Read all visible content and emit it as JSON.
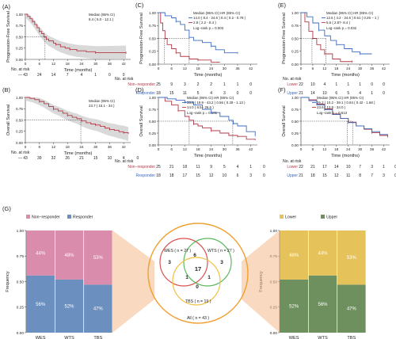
{
  "colors": {
    "red": "#b23a48",
    "blue": "#3d6bc2",
    "ci": "#cccccc",
    "pink": "#d98cab",
    "steel": "#6b8fbf",
    "gold": "#e6c25a",
    "green": "#6e8f5e",
    "ring_orange": "#f0a030",
    "ring_red": "#d9534f",
    "ring_green": "#5cb85c",
    "ring_yellow": "#f0c040"
  },
  "panels": {
    "A": {
      "letter": "(A)",
      "ylabel": "Progression-Free Survival",
      "xlabel": "Time (months)",
      "legend": "Median (95% CI)",
      "legend_rows": [
        "8.4 ( 5.0 - 12.1 )"
      ],
      "risk_title": "No. at risk",
      "risk_rows": [
        {
          "label": "—",
          "values": [
            "43",
            "24",
            "14",
            "7",
            "4",
            "1",
            "0",
            "0"
          ]
        }
      ]
    },
    "B": {
      "letter": "(B)",
      "ylabel": "Overall Survival",
      "xlabel": "Time (months)",
      "legend": "Median (95% CI)",
      "legend_rows": [
        "23.7 ( 15.1 - 34 )"
      ],
      "risk_title": "No. at risk",
      "risk_rows": [
        {
          "label": "—",
          "values": [
            "43",
            "39",
            "32",
            "26",
            "21",
            "15",
            "10",
            "4",
            "0"
          ]
        }
      ]
    },
    "C": {
      "letter": "(C)",
      "ylabel": "Progression-Free Survival",
      "xlabel": "Time (months)",
      "legend": "Median (95% CI)   HR (95% CI)",
      "legend_rows": [
        "14.0 ( 8.4 - 24.6 )  0.4 ( 0.2 - 0.78 )",
        "2.8 ( 2.2 - 8.4 )"
      ],
      "logrank": "Log−rank p = 0.003",
      "risk_title": "No. at risk",
      "risk_rows": [
        {
          "label": "Non−responder",
          "values": [
            "25",
            "9",
            "3",
            "2",
            "2",
            "1",
            "1",
            "0"
          ]
        },
        {
          "label": "Responder",
          "values": [
            "18",
            "15",
            "11",
            "5",
            "4",
            "3",
            "0",
            "0"
          ]
        }
      ]
    },
    "D": {
      "letter": "(D)",
      "ylabel": "Overall Survival",
      "xlabel": "Time (months)",
      "legend": "Median (95% CI)   HR (95% CI)",
      "legend_rows": [
        "33.8 ( 19.9 - 43.2 )  0.56 ( 0.28 - 1.13 )",
        "14.0 ( 8.5 - 26.6 )"
      ],
      "logrank": "Log−rank p = 0.101",
      "risk_title": "No. at risk",
      "risk_rows": [
        {
          "label": "Non−responder",
          "values": [
            "25",
            "21",
            "18",
            "11",
            "9",
            "5",
            "4",
            "1",
            "0"
          ]
        },
        {
          "label": "Responder",
          "values": [
            "18",
            "18",
            "17",
            "15",
            "12",
            "10",
            "6",
            "3",
            "0"
          ]
        }
      ]
    },
    "E": {
      "letter": "(E)",
      "ylabel": "Progression-Free Survival",
      "xlabel": "Time (months)",
      "legend": "Median (95% CI)   HR (95% CI)",
      "legend_rows": [
        "12.6 ( 4.2 - 24.6 )  0.51 ( 0.26 − 1 )",
        "5.6 ( 2.87- 8.4 )"
      ],
      "logrank": "Log−rank p = 0.032",
      "risk_title": "No. at risk",
      "risk_rows": [
        {
          "label": "Lower",
          "values": [
            "22",
            "10",
            "4",
            "1",
            "1",
            "1",
            "0",
            "0"
          ]
        },
        {
          "label": "Upper",
          "values": [
            "21",
            "14",
            "10",
            "6",
            "5",
            "4",
            "1",
            "0"
          ]
        }
      ]
    },
    "F": {
      "letter": "(F)",
      "ylabel": "Overall Survival",
      "xlabel": "Time (months)",
      "legend": "Median (95% CI)   HR (95% CI)",
      "legend_rows": [
        "26.2 ( 10.2 - 39.1 )  0.84 ( 0.42 - 1.68 )",
        "23.6 ( 13.9 - 34.0 )"
      ],
      "logrank": "Log−rank p = 0.613",
      "risk_title": "No. at risk",
      "risk_rows": [
        {
          "label": "Lower",
          "values": [
            "22",
            "21",
            "17",
            "14",
            "10",
            "7",
            "3",
            "1",
            "0"
          ]
        },
        {
          "label": "Upper",
          "values": [
            "21",
            "18",
            "15",
            "12",
            "11",
            "8",
            "7",
            "3",
            "0"
          ]
        }
      ]
    }
  },
  "g": {
    "letter": "(G)",
    "left_legend": [
      "Non−responder",
      "Responder"
    ],
    "right_legend": [
      "Lower",
      "Upper"
    ],
    "venn": {
      "wes": "WES ( n = 27 )",
      "wts": "WTS ( n = 27 )",
      "tbs": "TBS ( n = 19 )",
      "all": "All ( n = 43 )",
      "counts": [
        "3",
        "6",
        "3",
        "1",
        "17",
        "1",
        "0"
      ]
    }
  },
  "chart_data": [
    {
      "type": "line",
      "title": "",
      "xlabel": "Time (months)",
      "ylabel": "Progression-Free Survival",
      "xlim": [
        0,
        45
      ],
      "ylim": [
        0,
        1
      ],
      "x_ticks": [
        0,
        6,
        12,
        18,
        24,
        30,
        36,
        42
      ],
      "y_ticks": [
        0,
        0.25,
        0.5,
        0.75,
        1
      ],
      "series": [
        {
          "x": [
            0,
            1,
            2,
            3,
            4,
            5,
            6,
            7,
            8,
            9,
            10,
            12,
            13,
            15,
            17,
            19,
            22,
            26,
            30,
            36,
            40,
            43
          ],
          "y": [
            1,
            0.95,
            0.9,
            0.84,
            0.77,
            0.7,
            0.62,
            0.57,
            0.5,
            0.45,
            0.41,
            0.36,
            0.33,
            0.28,
            0.25,
            0.22,
            0.19,
            0.17,
            0.15,
            0.15,
            0.15,
            0.15
          ]
        }
      ]
    },
    {
      "type": "line",
      "title": "",
      "xlabel": "Time (months)",
      "ylabel": "Overall Survival",
      "xlim": [
        0,
        45
      ],
      "ylim": [
        0,
        1
      ],
      "x_ticks": [
        0,
        6,
        12,
        18,
        24,
        30,
        36,
        42
      ],
      "y_ticks": [
        0,
        0.25,
        0.5,
        0.75,
        1
      ],
      "series": [
        {
          "x": [
            0,
            2,
            4,
            6,
            8,
            10,
            12,
            14,
            16,
            18,
            20,
            22,
            24,
            26,
            28,
            30,
            32,
            34,
            36,
            38,
            40,
            42,
            44
          ],
          "y": [
            1,
            0.98,
            0.95,
            0.91,
            0.86,
            0.8,
            0.74,
            0.7,
            0.65,
            0.6,
            0.56,
            0.53,
            0.48,
            0.44,
            0.41,
            0.39,
            0.36,
            0.32,
            0.29,
            0.27,
            0.24,
            0.22,
            0.19
          ]
        }
      ]
    },
    {
      "type": "line",
      "title": "",
      "xlabel": "Time (months)",
      "ylabel": "Progression-Free Survival",
      "xlim": [
        0,
        45
      ],
      "ylim": [
        0,
        1
      ],
      "x_ticks": [
        0,
        6,
        12,
        18,
        24,
        30,
        36,
        42
      ],
      "y_ticks": [
        0,
        0.25,
        0.5,
        0.75,
        1
      ],
      "series": [
        {
          "name": "Non−responder",
          "x": [
            0,
            1,
            2,
            3,
            4,
            6,
            8,
            10,
            14,
            18,
            24,
            28
          ],
          "y": [
            1,
            0.8,
            0.65,
            0.5,
            0.38,
            0.3,
            0.22,
            0.15,
            0.1,
            0.08,
            0.04,
            0.04
          ]
        },
        {
          "name": "Responder",
          "x": [
            0,
            3,
            6,
            8,
            10,
            12,
            14,
            16,
            20,
            24,
            26,
            30,
            36
          ],
          "y": [
            1,
            0.94,
            0.9,
            0.83,
            0.77,
            0.66,
            0.52,
            0.46,
            0.42,
            0.35,
            0.28,
            0.22,
            0.22
          ]
        }
      ]
    },
    {
      "type": "line",
      "title": "",
      "xlabel": "Time (months)",
      "ylabel": "Overall Survival",
      "xlim": [
        0,
        45
      ],
      "ylim": [
        0,
        1
      ],
      "x_ticks": [
        0,
        6,
        12,
        18,
        24,
        30,
        36,
        42
      ],
      "y_ticks": [
        0,
        0.25,
        0.5,
        0.75,
        1
      ],
      "series": [
        {
          "name": "Non−responder",
          "x": [
            0,
            3,
            6,
            9,
            12,
            14,
            16,
            18,
            20,
            24,
            28,
            32,
            36,
            40,
            44
          ],
          "y": [
            1,
            0.92,
            0.84,
            0.72,
            0.6,
            0.52,
            0.44,
            0.4,
            0.36,
            0.3,
            0.25,
            0.2,
            0.18,
            0.12,
            0.1
          ]
        },
        {
          "name": "Responder",
          "x": [
            0,
            4,
            8,
            12,
            16,
            20,
            24,
            28,
            32,
            34,
            36,
            40,
            44
          ],
          "y": [
            1,
            0.97,
            0.94,
            0.9,
            0.84,
            0.75,
            0.68,
            0.6,
            0.52,
            0.45,
            0.4,
            0.28,
            0.2
          ]
        }
      ]
    },
    {
      "type": "line",
      "title": "",
      "xlabel": "Time (months)",
      "ylabel": "Progression-Free Survival",
      "xlim": [
        0,
        45
      ],
      "ylim": [
        0,
        1
      ],
      "x_ticks": [
        0,
        6,
        12,
        18,
        24,
        30,
        36,
        42
      ],
      "y_ticks": [
        0,
        0.25,
        0.5,
        0.75,
        1
      ],
      "series": [
        {
          "name": "Lower",
          "x": [
            0,
            2,
            4,
            6,
            8,
            10,
            12,
            16,
            20,
            26
          ],
          "y": [
            1,
            0.82,
            0.64,
            0.5,
            0.38,
            0.28,
            0.2,
            0.1,
            0.05,
            0.05
          ]
        },
        {
          "name": "Upper",
          "x": [
            0,
            3,
            6,
            9,
            12,
            15,
            18,
            22,
            26,
            30,
            36
          ],
          "y": [
            1,
            0.92,
            0.8,
            0.66,
            0.55,
            0.46,
            0.38,
            0.3,
            0.24,
            0.2,
            0.2
          ]
        }
      ]
    },
    {
      "type": "line",
      "title": "",
      "xlabel": "Time (months)",
      "ylabel": "Overall Survival",
      "xlim": [
        0,
        45
      ],
      "ylim": [
        0,
        1
      ],
      "x_ticks": [
        0,
        6,
        12,
        18,
        24,
        30,
        36,
        42
      ],
      "y_ticks": [
        0,
        0.25,
        0.5,
        0.75,
        1
      ],
      "series": [
        {
          "name": "Lower",
          "x": [
            0,
            4,
            8,
            12,
            16,
            20,
            24,
            28,
            32,
            36,
            40,
            44
          ],
          "y": [
            1,
            0.95,
            0.86,
            0.76,
            0.65,
            0.56,
            0.48,
            0.4,
            0.33,
            0.26,
            0.2,
            0.16
          ]
        },
        {
          "name": "Upper",
          "x": [
            0,
            4,
            8,
            12,
            16,
            20,
            24,
            28,
            32,
            36,
            40,
            44
          ],
          "y": [
            1,
            0.93,
            0.84,
            0.74,
            0.64,
            0.56,
            0.47,
            0.4,
            0.34,
            0.28,
            0.22,
            0.18
          ]
        }
      ]
    },
    {
      "type": "bar",
      "title": "",
      "xlabel": "",
      "ylabel": "Frequency",
      "categories": [
        "WES",
        "WTS",
        "TBS"
      ],
      "ylim": [
        0,
        1
      ],
      "y_ticks": [
        0,
        0.25,
        0.5,
        0.75,
        1
      ],
      "series": [
        {
          "name": "Responder",
          "values": [
            0.56,
            0.52,
            0.47
          ]
        },
        {
          "name": "Non−responder",
          "values": [
            0.44,
            0.48,
            0.53
          ]
        }
      ],
      "labels_bottom": [
        "56%",
        "52%",
        "47%"
      ],
      "labels_top": [
        "44%",
        "48%",
        "53%"
      ]
    },
    {
      "type": "bar",
      "title": "",
      "xlabel": "",
      "ylabel": "Frequency",
      "categories": [
        "WES",
        "WTS",
        "TBS"
      ],
      "ylim": [
        0,
        1
      ],
      "y_ticks": [
        0,
        0.25,
        0.5,
        0.75,
        1
      ],
      "series": [
        {
          "name": "Upper",
          "values": [
            0.52,
            0.56,
            0.47
          ]
        },
        {
          "name": "Lower",
          "values": [
            0.48,
            0.44,
            0.53
          ]
        }
      ],
      "labels_bottom": [
        "52%",
        "56%",
        "47%"
      ],
      "labels_top": [
        "48%",
        "44%",
        "53%"
      ]
    }
  ]
}
